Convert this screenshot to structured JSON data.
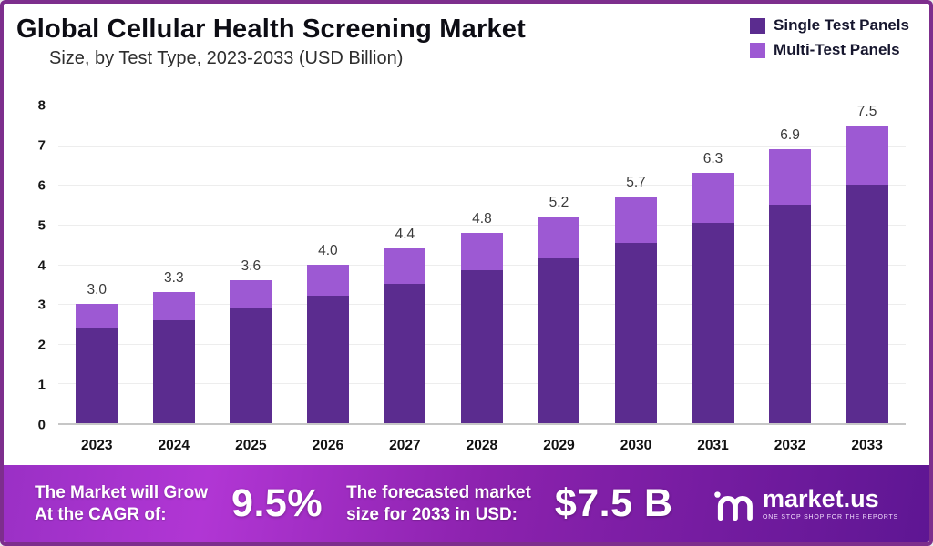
{
  "header": {
    "title": "Global Cellular Health Screening Market",
    "subtitle": "Size, by Test Type, 2023-2033 (USD Billion)"
  },
  "legend": [
    {
      "label": "Single Test Panels",
      "color": "#5b2c8f"
    },
    {
      "label": "Multi-Test Panels",
      "color": "#9d59d3"
    }
  ],
  "colors": {
    "single_test_panels": "#5b2c8f",
    "multi_test_panels": "#9d59d3",
    "page_border": "#7d2e8d",
    "banner_gradient_start": "#b136d4",
    "banner_gradient_end": "#5e1693"
  },
  "chart_data": {
    "type": "bar",
    "stacked": true,
    "title": "Global Cellular Health Screening Market",
    "subtitle": "Size, by Test Type, 2023-2033 (USD Billion)",
    "xlabel": "",
    "ylabel": "",
    "ylim": [
      0,
      8
    ],
    "yticks": [
      0,
      1,
      2,
      3,
      4,
      5,
      6,
      7,
      8
    ],
    "grid": true,
    "legend_position": "top-right",
    "categories": [
      "2023",
      "2024",
      "2025",
      "2026",
      "2027",
      "2028",
      "2029",
      "2030",
      "2031",
      "2032",
      "2033"
    ],
    "series": [
      {
        "name": "Single Test Panels",
        "color": "#5b2c8f",
        "values": [
          2.4,
          2.6,
          2.9,
          3.2,
          3.5,
          3.85,
          4.15,
          4.55,
          5.05,
          5.5,
          6.0
        ]
      },
      {
        "name": "Multi-Test Panels",
        "color": "#9d59d3",
        "values": [
          0.6,
          0.7,
          0.7,
          0.8,
          0.9,
          0.95,
          1.05,
          1.15,
          1.25,
          1.4,
          1.5
        ]
      }
    ],
    "totals": [
      3.0,
      3.3,
      3.6,
      4.0,
      4.4,
      4.8,
      5.2,
      5.7,
      6.3,
      6.9,
      7.5
    ],
    "total_labels": [
      "3.0",
      "3.3",
      "3.6",
      "4.0",
      "4.4",
      "4.8",
      "5.2",
      "5.7",
      "6.3",
      "6.9",
      "7.5"
    ]
  },
  "footer": {
    "cagr_text_line1": "The Market will Grow",
    "cagr_text_line2": "At the CAGR of:",
    "cagr_value": "9.5%",
    "forecast_text_line1": "The forecasted market",
    "forecast_text_line2": "size for 2033 in USD:",
    "forecast_value": "$7.5 B",
    "brand": "market.us",
    "brand_tagline": "ONE STOP SHOP FOR THE REPORTS"
  }
}
